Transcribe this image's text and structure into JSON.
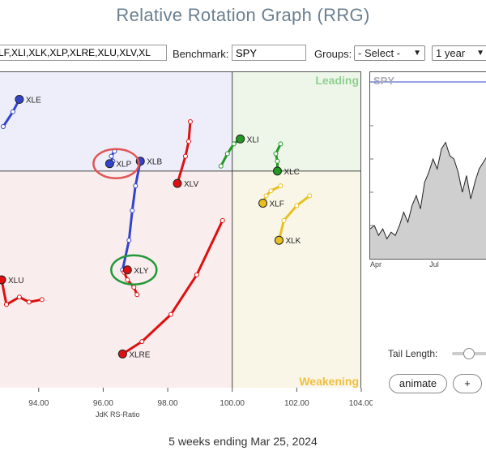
{
  "title": "Relative Rotation Graph (RRG)",
  "controls": {
    "symbols_value": "LF,XLI,XLK,XLP,XLRE,XLU,XLV,XL",
    "benchmark_label": "Benchmark:",
    "benchmark_value": "SPY",
    "groups_label": "Groups:",
    "groups_value": "- Select -",
    "period_value": "1 year"
  },
  "chart_data": {
    "type": "scatter",
    "xlabel": "JdK RS-Ratio",
    "x_ticks": [
      "94.00",
      "96.00",
      "98.00",
      "100.00",
      "102.00",
      "104.00"
    ],
    "quadrants": {
      "top_right": "Leading",
      "bottom_right": "Weakening"
    },
    "center": {
      "x": 100.0,
      "y": 100.0
    },
    "x_range": [
      92.8,
      104.0
    ],
    "y_range": [
      95.6,
      102.0
    ],
    "colors": {
      "blue": "#3344cc",
      "red": "#dd1111",
      "green": "#229922",
      "yellow": "#e8c020"
    },
    "series": [
      {
        "name": "XLE",
        "color": "blue",
        "tail": [
          [
            92.9,
            100.9
          ],
          [
            93.2,
            101.2
          ],
          [
            93.4,
            101.45
          ]
        ]
      },
      {
        "name": "XLB",
        "color": "blue",
        "tail": [
          [
            96.6,
            98.0
          ],
          [
            96.8,
            98.6
          ],
          [
            96.9,
            99.2
          ],
          [
            97.0,
            99.7
          ],
          [
            97.15,
            100.2
          ]
        ]
      },
      {
        "name": "XLP",
        "color": "blue",
        "tail": [
          [
            96.35,
            100.4
          ],
          [
            96.25,
            100.3
          ],
          [
            96.3,
            100.2
          ],
          [
            96.2,
            100.15
          ]
        ]
      },
      {
        "name": "XLV",
        "color": "red",
        "tail": [
          [
            98.7,
            101.0
          ],
          [
            98.65,
            100.6
          ],
          [
            98.55,
            100.3
          ],
          [
            98.3,
            99.75
          ]
        ]
      },
      {
        "name": "XLY",
        "color": "red",
        "tail": [
          [
            97.05,
            97.5
          ],
          [
            96.95,
            97.65
          ],
          [
            96.75,
            97.8
          ],
          [
            96.65,
            97.95
          ],
          [
            96.75,
            98.0
          ]
        ]
      },
      {
        "name": "XLU",
        "color": "red",
        "tail": [
          [
            94.1,
            97.4
          ],
          [
            93.7,
            97.35
          ],
          [
            93.4,
            97.45
          ],
          [
            93.0,
            97.3
          ],
          [
            92.85,
            97.8
          ]
        ]
      },
      {
        "name": "XLRE",
        "color": "red",
        "tail": [
          [
            99.7,
            99.0
          ],
          [
            98.9,
            97.9
          ],
          [
            98.1,
            97.1
          ],
          [
            97.2,
            96.55
          ],
          [
            96.6,
            96.3
          ]
        ]
      },
      {
        "name": "XLI",
        "color": "green",
        "tail": [
          [
            99.65,
            100.1
          ],
          [
            99.85,
            100.35
          ],
          [
            100.05,
            100.55
          ],
          [
            100.25,
            100.65
          ]
        ]
      },
      {
        "name": "XLC",
        "color": "green",
        "tail": [
          [
            101.5,
            100.55
          ],
          [
            101.35,
            100.35
          ],
          [
            101.4,
            100.2
          ],
          [
            101.4,
            100.0
          ]
        ]
      },
      {
        "name": "XLF",
        "color": "yellow",
        "tail": [
          [
            101.5,
            99.7
          ],
          [
            101.2,
            99.6
          ],
          [
            101.05,
            99.5
          ],
          [
            100.95,
            99.35
          ]
        ]
      },
      {
        "name": "XLK",
        "color": "yellow",
        "tail": [
          [
            102.4,
            99.5
          ],
          [
            102.0,
            99.3
          ],
          [
            101.6,
            99.0
          ],
          [
            101.45,
            98.6
          ]
        ]
      }
    ],
    "highlights": [
      "XLP",
      "XLY"
    ]
  },
  "side_chart": {
    "label": "SPY",
    "x_ticks": [
      "Apr",
      "Jul"
    ],
    "values": [
      0.18,
      0.2,
      0.14,
      0.18,
      0.12,
      0.16,
      0.14,
      0.2,
      0.28,
      0.22,
      0.32,
      0.38,
      0.3,
      0.46,
      0.52,
      0.6,
      0.54,
      0.66,
      0.7,
      0.62,
      0.6,
      0.52,
      0.4,
      0.5,
      0.36,
      0.46,
      0.54,
      0.58,
      0.62,
      0.66
    ]
  },
  "tail_length_label": "Tail Length:",
  "tail_length_value": 0.4,
  "animate_label": "animate",
  "plus_label": "+",
  "footer": "5 weeks ending Mar 25, 2024"
}
